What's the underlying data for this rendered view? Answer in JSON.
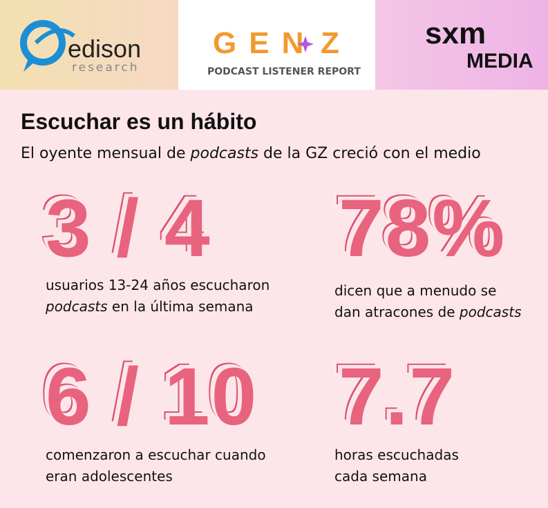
{
  "header": {
    "edison": {
      "name": "edison",
      "sub": "research"
    },
    "genz": {
      "left": "GEN",
      "right": "Z",
      "sub": "PODCAST LISTENER REPORT"
    },
    "sxm": {
      "name": "sxm",
      "sub": "MEDIA"
    }
  },
  "title": "Escuchar es un hábito",
  "subtitle": [
    {
      "text": "El oyente mensual de "
    },
    {
      "text": "podcasts",
      "italic": true
    },
    {
      "text": " de la GZ creció con el medio"
    }
  ],
  "stats": [
    {
      "figure": "3 / 4",
      "lines": [
        [
          {
            "text": "usuarios 13-24 años escucharon"
          }
        ],
        [
          {
            "text": "podcasts",
            "italic": true
          },
          {
            "text": " en la última semana"
          }
        ]
      ]
    },
    {
      "figure": "78%",
      "lines": [
        [
          {
            "text": "dicen que a menudo se"
          }
        ],
        [
          {
            "text": "dan atracones de "
          },
          {
            "text": "podcasts",
            "italic": true
          }
        ]
      ]
    },
    {
      "figure": "6 / 10",
      "lines": [
        [
          {
            "text": "comenzaron a escuchar cuando"
          }
        ],
        [
          {
            "text": "eran adolescentes"
          }
        ]
      ]
    },
    {
      "figure": "7.7",
      "lines": [
        [
          {
            "text": "horas escuchadas"
          }
        ],
        [
          {
            "text": "cada semana"
          }
        ]
      ]
    }
  ]
}
